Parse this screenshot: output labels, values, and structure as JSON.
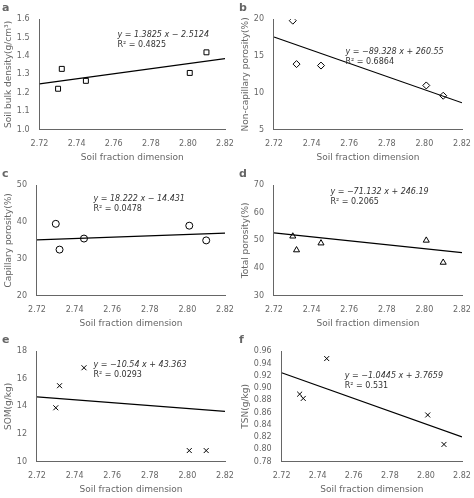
{
  "chart_data": [
    {
      "type": "scatter",
      "title": "a",
      "xlabel": "Soil fraction dimension",
      "ylabel": "Soil bulk density(g/cm³)",
      "xlim": [
        2.72,
        2.82
      ],
      "ylim": [
        1.0,
        1.6
      ],
      "xticks": [
        2.72,
        2.74,
        2.76,
        2.78,
        {
          "value": 2.8,
          "label": "2.80"
        },
        2.82
      ],
      "yticks": [
        {
          "value": 1.0,
          "label": "1.0"
        },
        {
          "value": 1.1,
          "label": "1.1"
        },
        {
          "value": 1.2,
          "label": "1.2"
        },
        {
          "value": 1.3,
          "label": "1.3"
        },
        {
          "value": 1.4,
          "label": "1.4"
        },
        {
          "value": 1.5,
          "label": "1.5"
        },
        {
          "value": 1.6,
          "label": "1.6"
        }
      ],
      "grid": false,
      "series": [
        {
          "type": "scatter",
          "marker": "square",
          "color": "black",
          "x": [
            2.73,
            2.732,
            2.745,
            2.801,
            2.81
          ],
          "values": [
            1.222,
            1.33,
            1.265,
            1.308,
            1.42
          ]
        },
        {
          "type": "line",
          "line_style": "solid",
          "color": "black",
          "x": [
            2.72,
            2.82
          ],
          "values": [
            1.248,
            1.38625
          ]
        }
      ],
      "annotations": [
        "y = 1.3825 x − 2.5124",
        "R² = 0.4825"
      ]
    },
    {
      "type": "scatter",
      "title": "b",
      "xlabel": "Soil fraction dimension",
      "ylabel": "Non-capillary porosity(%)",
      "xlim": [
        2.72,
        2.82
      ],
      "ylim": [
        5,
        20
      ],
      "xticks": [
        2.72,
        2.74,
        2.76,
        2.78,
        {
          "value": 2.8,
          "label": "2.80"
        },
        2.82
      ],
      "yticks": [
        5,
        10,
        15,
        20
      ],
      "grid": false,
      "series": [
        {
          "type": "scatter",
          "marker": "diamond",
          "color": "black",
          "x": [
            2.73,
            2.732,
            2.745,
            2.801,
            2.81
          ],
          "values": [
            19.8,
            13.9,
            13.7,
            11.0,
            9.6
          ]
        },
        {
          "type": "line",
          "line_style": "solid",
          "color": "black",
          "x": [
            2.72,
            2.82
          ],
          "values": [
            17.57784,
            8.64504
          ]
        }
      ],
      "annotations": [
        "y = −89.328 x + 260.55",
        "R² = 0.6864"
      ]
    },
    {
      "type": "scatter",
      "title": "c",
      "xlabel": "Soil fraction dimension",
      "ylabel": "Capillary porosity(%)",
      "xlim": [
        2.72,
        2.82
      ],
      "ylim": [
        20,
        50
      ],
      "xticks": [
        2.72,
        2.74,
        2.76,
        2.78,
        {
          "value": 2.8,
          "label": "2.80"
        },
        2.82
      ],
      "yticks": [
        20,
        30,
        40,
        50
      ],
      "grid": false,
      "series": [
        {
          "type": "scatter",
          "marker": "circle",
          "color": "black",
          "x": [
            2.73,
            2.732,
            2.745,
            2.801,
            2.81
          ],
          "values": [
            39.5,
            32.5,
            35.5,
            39.0,
            35.0
          ]
        },
        {
          "type": "line",
          "line_style": "solid",
          "color": "black",
          "x": [
            2.72,
            2.82
          ],
          "values": [
            35.13284,
            36.95504
          ]
        }
      ],
      "annotations": [
        "y = 18.222 x − 14.431",
        "R² = 0.0478"
      ]
    },
    {
      "type": "scatter",
      "title": "d",
      "xlabel": "Soil fraction dimension",
      "ylabel": "Total porosity(%)",
      "xlim": [
        2.72,
        2.82
      ],
      "ylim": [
        30,
        70
      ],
      "xticks": [
        2.72,
        2.74,
        2.76,
        2.78,
        {
          "value": 2.8,
          "label": "2.80"
        },
        2.82
      ],
      "yticks": [
        30,
        40,
        50,
        60,
        70
      ],
      "grid": false,
      "series": [
        {
          "type": "scatter",
          "marker": "triangle",
          "color": "black",
          "x": [
            2.73,
            2.732,
            2.745,
            2.801,
            2.81
          ],
          "values": [
            51.5,
            46.5,
            49.0,
            50.0,
            42.0
          ]
        },
        {
          "type": "line",
          "line_style": "solid",
          "color": "black",
          "x": [
            2.72,
            2.82
          ],
          "values": [
            52.71096,
            45.59776
          ]
        }
      ],
      "annotations": [
        "y = −71.132 x + 246.19",
        "R² = 0.2065"
      ]
    },
    {
      "type": "scatter",
      "title": "e",
      "xlabel": "Soil fraction dimension",
      "ylabel": "SOM(g/kg)",
      "xlim": [
        2.72,
        2.82
      ],
      "ylim": [
        10,
        18
      ],
      "xticks": [
        2.72,
        2.74,
        2.76,
        2.78,
        {
          "value": 2.8,
          "label": "2.80"
        },
        2.82
      ],
      "yticks": [
        10,
        12,
        14,
        16,
        18
      ],
      "grid": false,
      "series": [
        {
          "type": "scatter",
          "marker": "x",
          "color": "black",
          "x": [
            2.73,
            2.732,
            2.745,
            2.801,
            2.81
          ],
          "values": [
            13.9,
            15.5,
            16.8,
            10.8,
            10.8
          ]
        },
        {
          "type": "line",
          "line_style": "solid",
          "color": "black",
          "x": [
            2.72,
            2.82
          ],
          "values": [
            14.6942,
            13.6402
          ]
        }
      ],
      "annotations": [
        "y = −10.54 x + 43.363",
        "R² = 0.0293"
      ]
    },
    {
      "type": "scatter",
      "title": "f",
      "xlabel": "Soil fraction dimension",
      "ylabel": "TSN(g/kg)",
      "xlim": [
        2.72,
        2.82
      ],
      "ylim": [
        0.78,
        0.96
      ],
      "xticks": [
        2.72,
        2.74,
        2.76,
        2.78,
        {
          "value": 2.8,
          "label": "2.80"
        },
        2.82
      ],
      "yticks": [
        0.78,
        {
          "value": 0.8,
          "label": "0.80"
        },
        0.82,
        0.84,
        0.86,
        0.88,
        {
          "value": 0.9,
          "label": "0.90"
        },
        0.92,
        0.94,
        0.96
      ],
      "grid": false,
      "series": [
        {
          "type": "scatter",
          "marker": "x",
          "color": "black",
          "x": [
            2.73,
            2.732,
            2.745,
            2.801,
            2.81
          ],
          "values": [
            0.89,
            0.883,
            0.948,
            0.856,
            0.808
          ]
        },
        {
          "type": "line",
          "line_style": "solid",
          "color": "black",
          "x": [
            2.72,
            2.82
          ],
          "values": [
            0.92486,
            0.82041
          ]
        }
      ],
      "annotations": [
        "y = −1.0445 x + 3.7659",
        "R² = 0.531"
      ]
    }
  ]
}
